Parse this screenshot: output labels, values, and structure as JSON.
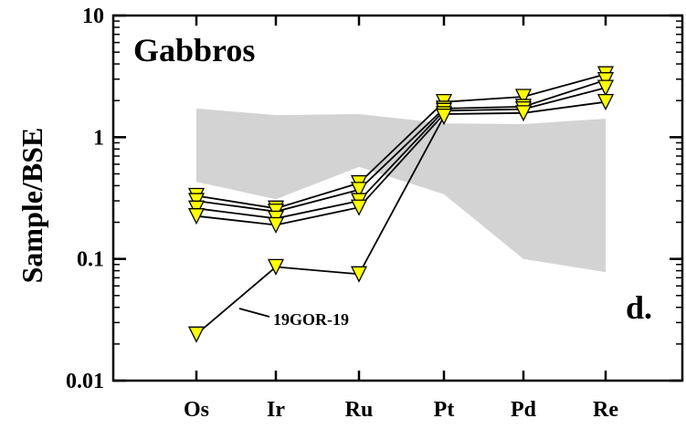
{
  "chart_data": {
    "type": "line",
    "title": "Gabbros",
    "panel_label": "d.",
    "xlabel": "",
    "ylabel": "Sample/BSE",
    "yscale": "log",
    "ylim": [
      0.01,
      10
    ],
    "yticks": [
      "0.01",
      "0.1",
      "1",
      "10"
    ],
    "yticks_values": [
      0.01,
      0.1,
      1,
      10
    ],
    "categories": [
      "Os",
      "Ir",
      "Ru",
      "Pt",
      "Pd",
      "Re"
    ],
    "grid": false,
    "legend": "none",
    "marker": "inverted-triangle",
    "marker_color": "#ffff00",
    "marker_edge_color": "#000000",
    "line_color": "#000000",
    "shade_color": "#d3d3d3",
    "shaded_range": {
      "upper": [
        1.72,
        1.52,
        1.55,
        1.3,
        1.28,
        1.42
      ],
      "lower": [
        0.43,
        0.31,
        0.57,
        0.34,
        0.1,
        0.078
      ]
    },
    "series": [
      {
        "values": [
          0.33,
          0.26,
          0.42,
          1.95,
          2.15,
          3.3
        ]
      },
      {
        "values": [
          0.3,
          0.245,
          0.37,
          1.72,
          1.78,
          2.95
        ]
      },
      {
        "values": [
          0.26,
          0.215,
          0.3,
          1.65,
          1.7,
          2.55
        ]
      },
      {
        "values": [
          0.225,
          0.19,
          0.265,
          1.55,
          1.58,
          1.95
        ]
      },
      {
        "values": [
          0.024,
          0.086,
          0.075,
          1.48,
          null,
          null
        ]
      }
    ],
    "annotations": [
      {
        "text": "19GOR-19",
        "points_to": {
          "category": "Os",
          "value": 0.024
        }
      }
    ]
  }
}
